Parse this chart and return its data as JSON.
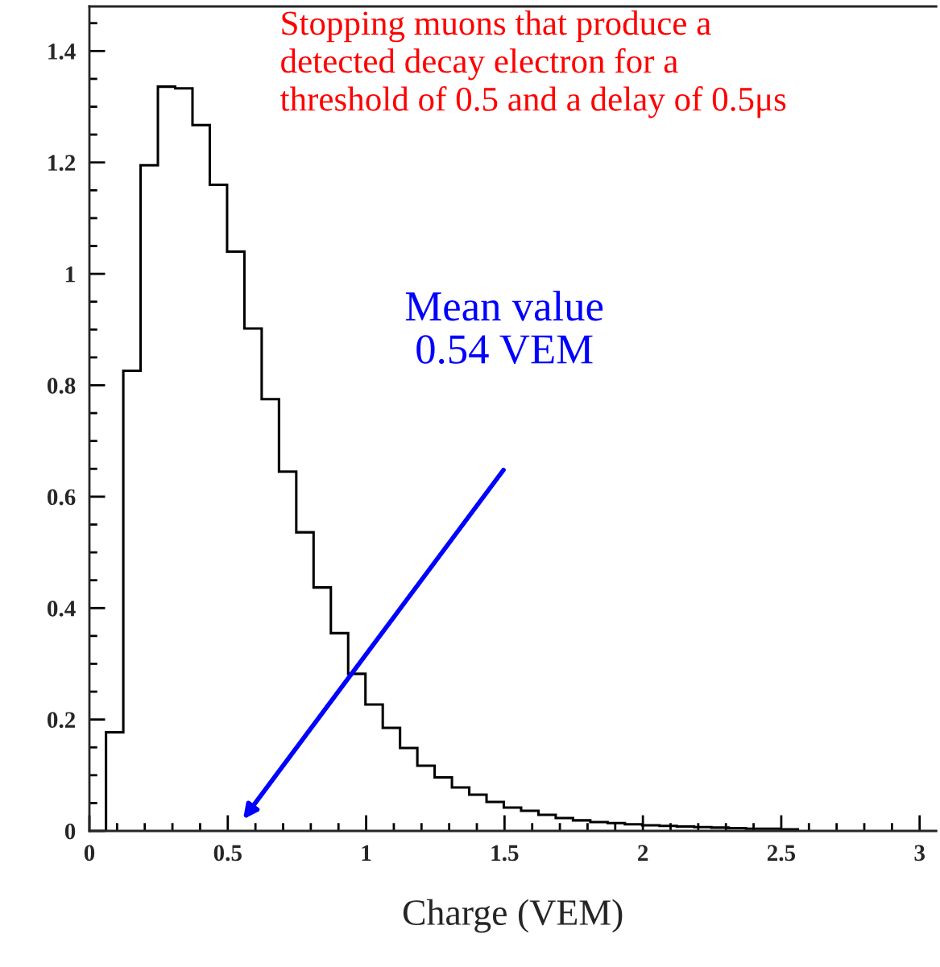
{
  "chart_data": {
    "type": "histogram",
    "xlabel": "Charge (VEM)",
    "bins": [
      0.06,
      0.1225,
      0.185,
      0.2475,
      0.31,
      0.3725,
      0.435,
      0.4975,
      0.56,
      0.6225,
      0.685,
      0.7475,
      0.81,
      0.8725,
      0.935,
      0.9975,
      1.06,
      1.1225,
      1.185,
      1.2475,
      1.31,
      1.3725,
      1.435,
      1.4975,
      1.56,
      1.6225,
      1.685,
      1.7475,
      1.81,
      1.8725,
      1.935,
      1.9975,
      2.06,
      2.1225,
      2.185,
      2.2475,
      2.31,
      2.3725,
      2.435,
      2.4975,
      2.56
    ],
    "values": [
      0.177,
      0.826,
      1.195,
      1.336,
      1.333,
      1.267,
      1.16,
      1.04,
      0.902,
      0.775,
      0.645,
      0.536,
      0.437,
      0.355,
      0.282,
      0.227,
      0.185,
      0.149,
      0.117,
      0.096,
      0.078,
      0.065,
      0.052,
      0.042,
      0.036,
      0.029,
      0.023,
      0.019,
      0.016,
      0.014,
      0.012,
      0.01,
      0.009,
      0.008,
      0.007,
      0.006,
      0.005,
      0.004,
      0.004,
      0.003
    ],
    "color": "#000000",
    "xlim": [
      0,
      3.06
    ],
    "ylim": [
      0,
      1.48
    ],
    "xticks": [
      0,
      0.5,
      1,
      1.5,
      2,
      2.5,
      3
    ],
    "yticks": [
      0,
      0.2,
      0.4,
      0.6,
      0.8,
      1,
      1.2,
      1.4
    ],
    "grid": false,
    "annotations": [
      "Stopping muons that produce a\ndetected decay electron for a\nthreshold of 0.5 and a delay of 0.5μs",
      "Mean value\n0.54 VEM"
    ]
  }
}
